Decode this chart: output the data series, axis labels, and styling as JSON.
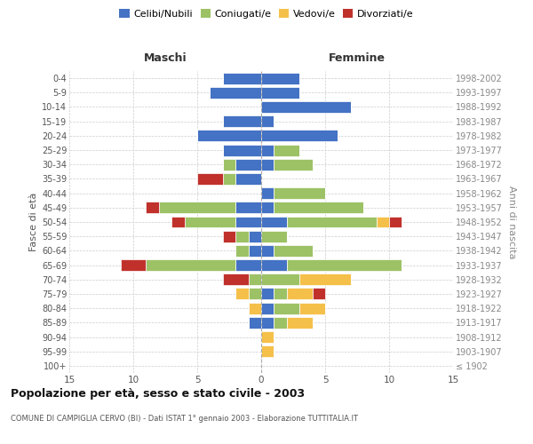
{
  "age_groups": [
    "100+",
    "95-99",
    "90-94",
    "85-89",
    "80-84",
    "75-79",
    "70-74",
    "65-69",
    "60-64",
    "55-59",
    "50-54",
    "45-49",
    "40-44",
    "35-39",
    "30-34",
    "25-29",
    "20-24",
    "15-19",
    "10-14",
    "5-9",
    "0-4"
  ],
  "birth_years": [
    "≤ 1902",
    "1903-1907",
    "1908-1912",
    "1913-1917",
    "1918-1922",
    "1923-1927",
    "1928-1932",
    "1933-1937",
    "1938-1942",
    "1943-1947",
    "1948-1952",
    "1953-1957",
    "1958-1962",
    "1963-1967",
    "1968-1972",
    "1973-1977",
    "1978-1982",
    "1983-1987",
    "1988-1992",
    "1993-1997",
    "1998-2002"
  ],
  "male": {
    "celibi": [
      0,
      0,
      0,
      1,
      0,
      0,
      0,
      2,
      1,
      1,
      2,
      2,
      0,
      2,
      2,
      3,
      5,
      3,
      0,
      4,
      3
    ],
    "coniugati": [
      0,
      0,
      0,
      0,
      0,
      1,
      1,
      7,
      1,
      1,
      4,
      6,
      0,
      1,
      1,
      0,
      0,
      0,
      0,
      0,
      0
    ],
    "vedovi": [
      0,
      0,
      0,
      0,
      1,
      1,
      0,
      0,
      0,
      0,
      0,
      0,
      0,
      0,
      0,
      0,
      0,
      0,
      0,
      0,
      0
    ],
    "divorziati": [
      0,
      0,
      0,
      0,
      0,
      0,
      2,
      2,
      0,
      1,
      1,
      1,
      0,
      2,
      0,
      0,
      0,
      0,
      0,
      0,
      0
    ]
  },
  "female": {
    "nubili": [
      0,
      0,
      0,
      1,
      1,
      1,
      0,
      2,
      1,
      0,
      2,
      1,
      1,
      0,
      1,
      1,
      6,
      1,
      7,
      3,
      3
    ],
    "coniugate": [
      0,
      0,
      0,
      1,
      2,
      1,
      3,
      9,
      3,
      2,
      7,
      7,
      4,
      0,
      3,
      2,
      0,
      0,
      0,
      0,
      0
    ],
    "vedove": [
      0,
      1,
      1,
      2,
      2,
      2,
      4,
      0,
      0,
      0,
      1,
      0,
      0,
      0,
      0,
      0,
      0,
      0,
      0,
      0,
      0
    ],
    "divorziate": [
      0,
      0,
      0,
      0,
      0,
      1,
      0,
      0,
      0,
      0,
      1,
      0,
      0,
      0,
      0,
      0,
      0,
      0,
      0,
      0,
      0
    ]
  },
  "colors": {
    "celibi": "#4472C4",
    "coniugati": "#9DC266",
    "vedovi": "#F5C04A",
    "divorziati": "#C0312C"
  },
  "title": "Popolazione per età, sesso e stato civile - 2003",
  "subtitle": "COMUNE DI CAMPIGLIA CERVO (BI) - Dati ISTAT 1° gennaio 2003 - Elaborazione TUTTITALIA.IT",
  "xlabel_left": "Maschi",
  "xlabel_right": "Femmine",
  "ylabel_left": "Fasce di età",
  "ylabel_right": "Anni di nascita",
  "legend_labels": [
    "Celibi/Nubili",
    "Coniugati/e",
    "Vedovi/e",
    "Divorziati/e"
  ],
  "xlim": 15,
  "bg_color": "#ffffff",
  "grid_color": "#cccccc"
}
